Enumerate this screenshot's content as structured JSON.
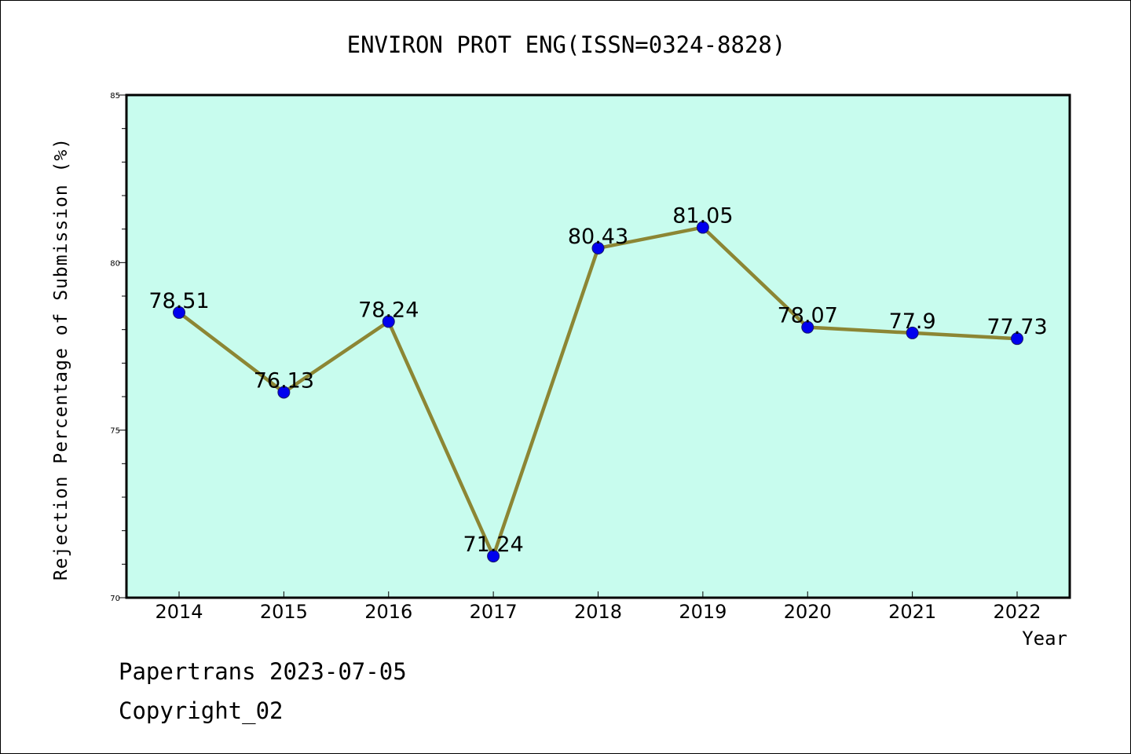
{
  "chart_data": {
    "type": "line",
    "title": "ENVIRON PROT ENG(ISSN=0324-8828)",
    "xlabel": "Year",
    "ylabel": "Rejection Percentage of Submission (%)",
    "categories": [
      "2014",
      "2015",
      "2016",
      "2017",
      "2018",
      "2019",
      "2020",
      "2021",
      "2022"
    ],
    "series": [
      {
        "values": [
          78.51,
          76.13,
          78.24,
          71.24,
          80.43,
          81.05,
          78.07,
          77.9,
          77.73
        ],
        "labels": [
          "78.51",
          "76.13",
          "78.24",
          "71.24",
          "80.43",
          "81.05",
          "78.07",
          "77.9",
          "77.73"
        ]
      }
    ],
    "ylim": [
      70,
      85
    ],
    "yticks": [
      "70",
      "75",
      "80",
      "85"
    ],
    "grid": false,
    "legend": "none",
    "colors": {
      "plot_background": "#c8fcee",
      "line": "#8c8634",
      "marker": "#0000ee",
      "marker_edge": "#1a1a66"
    }
  },
  "footer": {
    "line1": "Papertrans 2023-07-05",
    "line2": "Copyright_02"
  }
}
